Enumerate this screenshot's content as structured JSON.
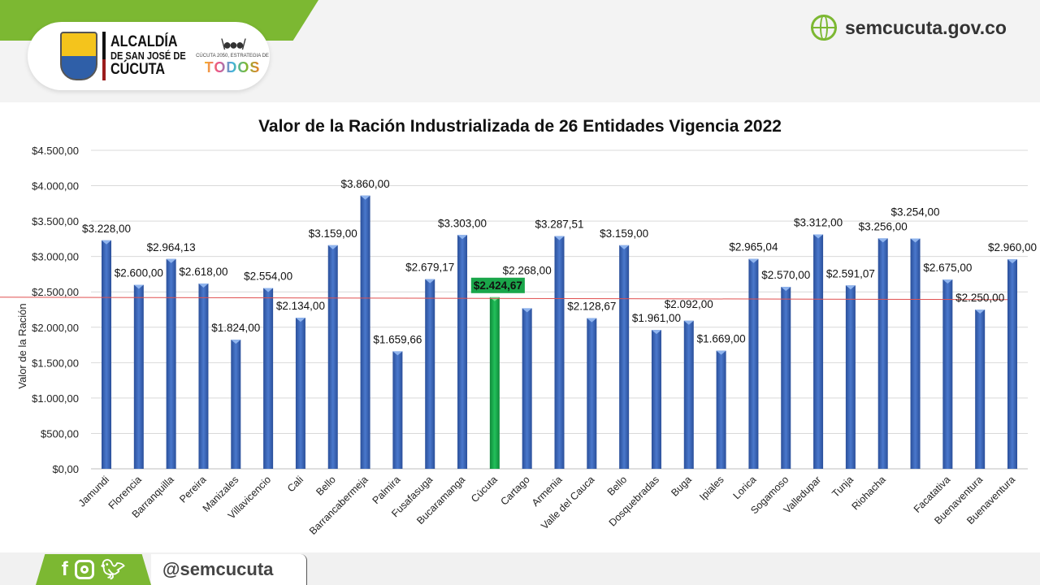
{
  "header": {
    "logo_text": [
      "ALCALDÍA",
      "DE SAN JOSÉ DE",
      "CÚCUTA"
    ],
    "slogan": "CÚCUTA 2050, ESTRATEGIA DE",
    "slogan_brand": "TODOS",
    "site": "semcucuta.gov.co"
  },
  "footer": {
    "handle": "@semcucuta",
    "icons": [
      "facebook-icon",
      "instagram-icon",
      "twitter-icon"
    ]
  },
  "colors": {
    "bar": "#3c64b4",
    "highlight": "#1aa64a",
    "average_line": "#e05050",
    "brand_green": "#7cb832"
  },
  "chart_data": {
    "type": "bar",
    "title": "Valor de la Ración Industrializada de 26 Entidades Vigencia 2022",
    "xlabel": "",
    "ylabel": "Valor de la Ración",
    "ylim": [
      0,
      4500
    ],
    "yticks": [
      0,
      500,
      1000,
      1500,
      2000,
      2500,
      3000,
      3500,
      4000,
      4500
    ],
    "ytick_labels": [
      "$0,00",
      "$500,00",
      "$1.000,00",
      "$1.500,00",
      "$2.000,00",
      "$2.500,00",
      "$3.000,00",
      "$3.500,00",
      "$4.000,00",
      "$4.500,00"
    ],
    "grid": true,
    "categories": [
      "Jamundi",
      "Florencia",
      "Barranquilla",
      "Pereira",
      "Manizales",
      "Villavicencio",
      "Cali",
      "Bello",
      "Barrancabermeja",
      "Palmira",
      "Fusafasuga",
      "Bucaramanga",
      "Cúcuta",
      "Cartago",
      "Armenia",
      "Valle del Cauca",
      "Bello",
      "Dosquebradas",
      "Buga",
      "Ipiales",
      "Lorica",
      "Sogamoso",
      "Valledupar",
      "Tunja",
      "Riohacha",
      "",
      "Facatativa",
      "Buenaventura",
      "Buenaventura"
    ],
    "values": [
      3228,
      2600,
      2964.13,
      2618,
      1824,
      2554,
      2134,
      3159,
      3860,
      1659.66,
      2679.17,
      3303,
      2424.67,
      2268,
      3287.51,
      2128.67,
      3159,
      1961,
      2092,
      1669,
      2965.04,
      2570,
      3312,
      2591.07,
      3256,
      3254,
      2675,
      2250,
      2960
    ],
    "data_labels": [
      "$3.228,00",
      "$2.600,00",
      "$2.964,13",
      "$2.618,00",
      "$1.824,00",
      "$2.554,00",
      "$2.134,00",
      "$3.159,00",
      "$3.860,00",
      "$1.659,66",
      "$2.679,17",
      "$3.303,00",
      "$2.424,67",
      "$2.268,00",
      "$3.287,51",
      "$2.128,67",
      "$3.159,00",
      "$1.961,00",
      "$2.092,00",
      "$1.669,00",
      "$2.965,04",
      "$2.570,00",
      "$3.312,00",
      "$2.591,07",
      "$3.256,00",
      "$3.254,00",
      "$2.675,00",
      "$2.250,00",
      "$2.960,00"
    ],
    "highlight_index": 12,
    "average_line": 2424.67
  }
}
